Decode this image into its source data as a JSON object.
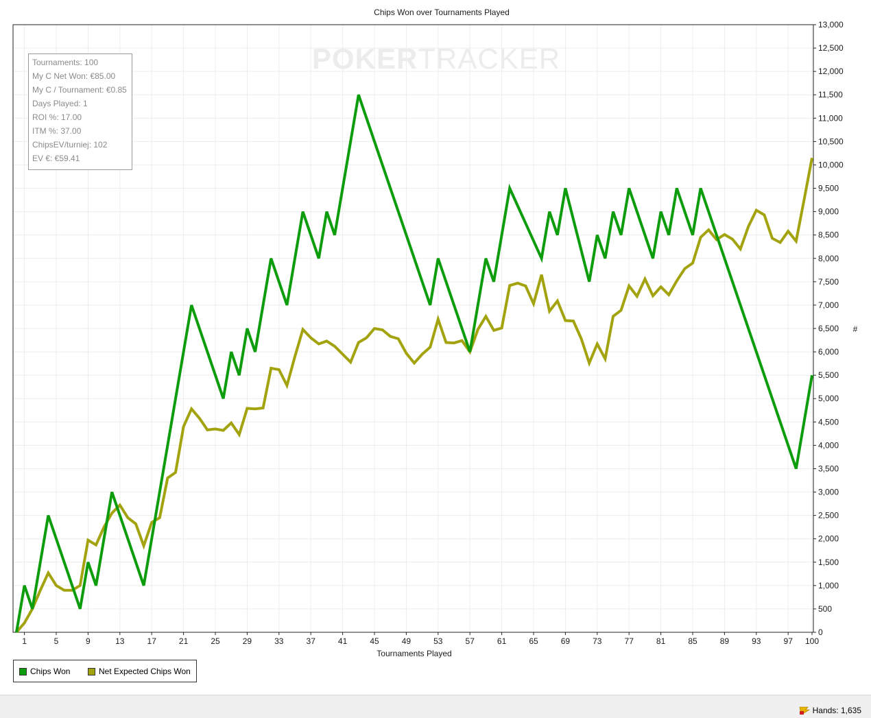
{
  "chart_data": {
    "type": "line",
    "title": "Chips Won over Tournaments Played",
    "xlabel": "Tournaments Played",
    "ylabel": "#",
    "xlim": [
      0,
      100
    ],
    "ylim": [
      0,
      13000
    ],
    "y_axis_position": "right",
    "grid": true,
    "legend_position": "bottom-left",
    "x_ticks": [
      1,
      5,
      9,
      13,
      17,
      21,
      25,
      29,
      33,
      37,
      41,
      45,
      49,
      53,
      57,
      61,
      65,
      69,
      73,
      77,
      81,
      85,
      89,
      93,
      97,
      100
    ],
    "y_ticks": [
      0,
      500,
      1000,
      1500,
      2000,
      2500,
      3000,
      3500,
      4000,
      4500,
      5000,
      5500,
      6000,
      6500,
      7000,
      7500,
      8000,
      8500,
      9000,
      9500,
      10000,
      10500,
      11000,
      11500,
      12000,
      12500,
      13000
    ],
    "y_tick_labels": [
      "0",
      "500",
      "1,000",
      "1,500",
      "2,000",
      "2,500",
      "3,000",
      "3,500",
      "4,000",
      "4,500",
      "5,000",
      "5,500",
      "6,000",
      "6,500",
      "7,000",
      "7,500",
      "8,000",
      "8,500",
      "9,000",
      "9,500",
      "10,000",
      "10,500",
      "11,000",
      "11,500",
      "12,000",
      "12,500",
      "13,000"
    ],
    "series": [
      {
        "name": "Chips Won",
        "color": "#0c9c0c",
        "points": [
          [
            0,
            0
          ],
          [
            1,
            1000
          ],
          [
            2,
            500
          ],
          [
            4,
            2500
          ],
          [
            8,
            500
          ],
          [
            9,
            1500
          ],
          [
            10,
            1000
          ],
          [
            12,
            3000
          ],
          [
            16,
            1000
          ],
          [
            22,
            7000
          ],
          [
            26,
            5000
          ],
          [
            27,
            6000
          ],
          [
            28,
            5500
          ],
          [
            29,
            6500
          ],
          [
            30,
            6000
          ],
          [
            32,
            8000
          ],
          [
            34,
            7000
          ],
          [
            36,
            9000
          ],
          [
            38,
            8000
          ],
          [
            39,
            9000
          ],
          [
            40,
            8500
          ],
          [
            43,
            11500
          ],
          [
            52,
            7000
          ],
          [
            53,
            8000
          ],
          [
            57,
            6000
          ],
          [
            59,
            8000
          ],
          [
            60,
            7500
          ],
          [
            62,
            9500
          ],
          [
            66,
            8000
          ],
          [
            67,
            9000
          ],
          [
            68,
            8500
          ],
          [
            69,
            9500
          ],
          [
            72,
            7500
          ],
          [
            73,
            8500
          ],
          [
            74,
            8000
          ],
          [
            75,
            9000
          ],
          [
            76,
            8500
          ],
          [
            77,
            9500
          ],
          [
            80,
            8000
          ],
          [
            81,
            9000
          ],
          [
            82,
            8500
          ],
          [
            83,
            9500
          ],
          [
            85,
            8500
          ],
          [
            86,
            9500
          ],
          [
            98,
            3500
          ],
          [
            100,
            5500
          ]
        ]
      },
      {
        "name": "Net Expected Chips Won",
        "color": "#a3a30f",
        "points": [
          [
            0,
            0
          ],
          [
            1,
            200
          ],
          [
            2,
            500
          ],
          [
            3,
            900
          ],
          [
            4,
            1270
          ],
          [
            5,
            1000
          ],
          [
            6,
            900
          ],
          [
            7,
            900
          ],
          [
            8,
            1000
          ],
          [
            9,
            1970
          ],
          [
            10,
            1870
          ],
          [
            11,
            2250
          ],
          [
            12,
            2550
          ],
          [
            13,
            2720
          ],
          [
            14,
            2450
          ],
          [
            15,
            2320
          ],
          [
            16,
            1850
          ],
          [
            17,
            2350
          ],
          [
            18,
            2450
          ],
          [
            19,
            3300
          ],
          [
            20,
            3420
          ],
          [
            21,
            4400
          ],
          [
            22,
            4780
          ],
          [
            23,
            4580
          ],
          [
            24,
            4330
          ],
          [
            25,
            4350
          ],
          [
            26,
            4320
          ],
          [
            27,
            4480
          ],
          [
            28,
            4230
          ],
          [
            29,
            4790
          ],
          [
            30,
            4780
          ],
          [
            31,
            4800
          ],
          [
            32,
            5650
          ],
          [
            33,
            5620
          ],
          [
            34,
            5280
          ],
          [
            35,
            5900
          ],
          [
            36,
            6480
          ],
          [
            37,
            6300
          ],
          [
            38,
            6170
          ],
          [
            39,
            6230
          ],
          [
            40,
            6120
          ],
          [
            41,
            5950
          ],
          [
            42,
            5780
          ],
          [
            43,
            6200
          ],
          [
            44,
            6300
          ],
          [
            45,
            6500
          ],
          [
            46,
            6470
          ],
          [
            47,
            6330
          ],
          [
            48,
            6280
          ],
          [
            49,
            5970
          ],
          [
            50,
            5760
          ],
          [
            51,
            5950
          ],
          [
            52,
            6100
          ],
          [
            53,
            6700
          ],
          [
            54,
            6200
          ],
          [
            55,
            6190
          ],
          [
            56,
            6240
          ],
          [
            57,
            6000
          ],
          [
            58,
            6480
          ],
          [
            59,
            6760
          ],
          [
            60,
            6460
          ],
          [
            61,
            6510
          ],
          [
            62,
            7420
          ],
          [
            63,
            7470
          ],
          [
            64,
            7410
          ],
          [
            65,
            7030
          ],
          [
            66,
            7650
          ],
          [
            67,
            6870
          ],
          [
            68,
            7090
          ],
          [
            69,
            6670
          ],
          [
            70,
            6660
          ],
          [
            71,
            6280
          ],
          [
            72,
            5760
          ],
          [
            73,
            6170
          ],
          [
            74,
            5850
          ],
          [
            75,
            6760
          ],
          [
            76,
            6890
          ],
          [
            77,
            7410
          ],
          [
            78,
            7190
          ],
          [
            79,
            7560
          ],
          [
            80,
            7200
          ],
          [
            81,
            7390
          ],
          [
            82,
            7220
          ],
          [
            83,
            7520
          ],
          [
            84,
            7780
          ],
          [
            85,
            7900
          ],
          [
            86,
            8450
          ],
          [
            87,
            8610
          ],
          [
            88,
            8400
          ],
          [
            89,
            8510
          ],
          [
            90,
            8410
          ],
          [
            91,
            8200
          ],
          [
            92,
            8680
          ],
          [
            93,
            9030
          ],
          [
            94,
            8930
          ],
          [
            95,
            8430
          ],
          [
            96,
            8340
          ],
          [
            97,
            8580
          ],
          [
            98,
            8370
          ],
          [
            99,
            9250
          ],
          [
            100,
            10150
          ]
        ]
      }
    ]
  },
  "stats": {
    "tournaments": "Tournaments: 100",
    "net_won": "My C Net Won: €85.00",
    "per_tournament": "My C / Tournament: €0.85",
    "days_played": "Days Played: 1",
    "roi": "ROI %: 17.00",
    "itm": "ITM %: 37.00",
    "chips_ev": "ChipsEV/turniej: 102",
    "ev": "EV €: €59.41"
  },
  "watermark": {
    "bold": "POKER",
    "light": "TRACKER"
  },
  "legend": {
    "series1": "Chips Won",
    "series2": "Net Expected Chips Won"
  },
  "status_bar": {
    "hands": "Hands: 1,635",
    "icon": "lightning-flag-icon"
  }
}
